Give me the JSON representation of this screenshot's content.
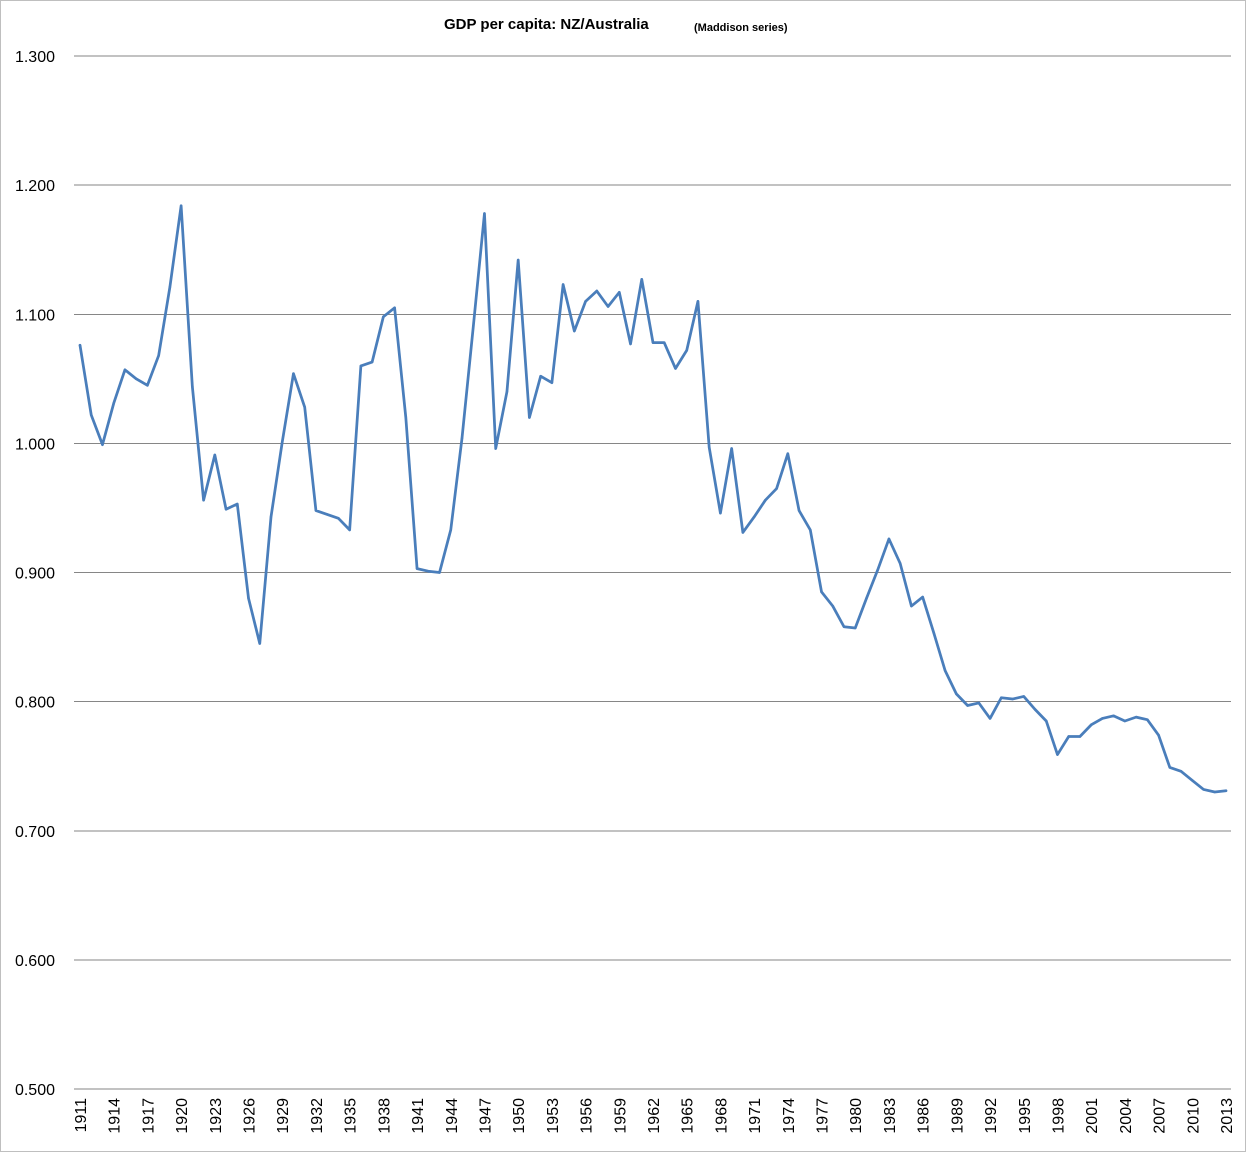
{
  "chart_data": {
    "type": "line",
    "title": "GDP per capita: NZ/Australia",
    "subtitle": "(Maddison series)",
    "xlabel": "",
    "ylabel": "",
    "ylim": [
      0.5,
      1.3
    ],
    "y_ticks": [
      "0.500",
      "0.600",
      "0.700",
      "0.800",
      "0.900",
      "1.000",
      "1.100",
      "1.200",
      "1.300"
    ],
    "x_ticks": [
      "1911",
      "1914",
      "1917",
      "1920",
      "1923",
      "1926",
      "1929",
      "1932",
      "1935",
      "1938",
      "1941",
      "1944",
      "1947",
      "1950",
      "1953",
      "1956",
      "1959",
      "1962",
      "1965",
      "1968",
      "1971",
      "1974",
      "1977",
      "1980",
      "1983",
      "1986",
      "1989",
      "1992",
      "1995",
      "1998",
      "2001",
      "2004",
      "2007",
      "2010",
      "2013"
    ],
    "grid": true,
    "line_color": "#4a7ebb",
    "series": [
      {
        "x": [
          1911,
          1912,
          1913,
          1914,
          1915,
          1916,
          1917,
          1918,
          1919,
          1920,
          1921,
          1922,
          1923,
          1924,
          1925,
          1926,
          1927,
          1928,
          1929,
          1930,
          1931,
          1932,
          1933,
          1934,
          1935,
          1936,
          1937,
          1938,
          1939,
          1940,
          1941,
          1942,
          1943,
          1944,
          1945,
          1946,
          1947,
          1948,
          1949,
          1950,
          1951,
          1952,
          1953,
          1954,
          1955,
          1956,
          1957,
          1958,
          1959,
          1960,
          1961,
          1962,
          1963,
          1964,
          1965,
          1966,
          1967,
          1968,
          1969,
          1970,
          1971,
          1972,
          1973,
          1974,
          1975,
          1976,
          1977,
          1978,
          1979,
          1980,
          1981,
          1982,
          1983,
          1984,
          1985,
          1986,
          1987,
          1988,
          1989,
          1990,
          1991,
          1992,
          1993,
          1994,
          1995,
          1996,
          1997,
          1998,
          1999,
          2000,
          2001,
          2002,
          2003,
          2004,
          2005,
          2006,
          2007,
          2008,
          2009,
          2010,
          2011,
          2012,
          2013
        ],
        "values": [
          1.076,
          1.022,
          0.999,
          1.031,
          1.057,
          1.05,
          1.045,
          1.068,
          1.121,
          1.184,
          1.044,
          0.956,
          0.991,
          0.949,
          0.953,
          0.88,
          0.845,
          0.943,
          1.001,
          1.054,
          1.028,
          0.948,
          0.945,
          0.942,
          0.933,
          1.06,
          1.063,
          1.098,
          1.105,
          1.02,
          0.903,
          0.901,
          0.9,
          0.933,
          1.004,
          1.09,
          1.178,
          0.996,
          1.04,
          1.142,
          1.02,
          1.052,
          1.047,
          1.123,
          1.087,
          1.11,
          1.118,
          1.106,
          1.117,
          1.077,
          1.127,
          1.078,
          1.078,
          1.058,
          1.072,
          1.11,
          0.997,
          0.946,
          0.996,
          0.931,
          0.943,
          0.956,
          0.965,
          0.992,
          0.948,
          0.933,
          0.885,
          0.874,
          0.858,
          0.857,
          0.88,
          0.902,
          0.926,
          0.907,
          0.874,
          0.881,
          0.853,
          0.824,
          0.806,
          0.797,
          0.799,
          0.787,
          0.803,
          0.802,
          0.804,
          0.794,
          0.785,
          0.759,
          0.773,
          0.773,
          0.782,
          0.787,
          0.789,
          0.785,
          0.788,
          0.786,
          0.774,
          0.749,
          0.746,
          0.739,
          0.732,
          0.73,
          0.731
        ]
      }
    ]
  }
}
